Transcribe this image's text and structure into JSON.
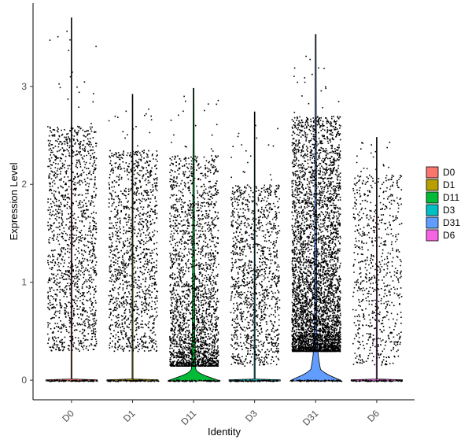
{
  "chart_data": {
    "type": "violin",
    "xlabel": "Identity",
    "ylabel": "Expression Level",
    "ylim": [
      -0.2,
      3.85
    ],
    "yticks": [
      0,
      1,
      2,
      3
    ],
    "categories": [
      "D0",
      "D1",
      "D11",
      "D3",
      "D31",
      "D6"
    ],
    "series": [
      {
        "name": "D0",
        "color": "#F8766D",
        "max": 3.7,
        "jitter_range": [
          0.3,
          2.6
        ],
        "point_count": 1400,
        "violin_peak_width": 0.0
      },
      {
        "name": "D1",
        "color": "#B79F00",
        "max": 2.92,
        "jitter_range": [
          0.3,
          2.35
        ],
        "point_count": 1300,
        "violin_peak_width": 0.0
      },
      {
        "name": "D11",
        "color": "#00BA38",
        "max": 2.98,
        "jitter_range": [
          0.15,
          2.3
        ],
        "point_count": 2300,
        "violin_peak_width": 0.35
      },
      {
        "name": "D3",
        "color": "#00BFC4",
        "max": 2.74,
        "jitter_range": [
          0.15,
          2.0
        ],
        "point_count": 1200,
        "violin_peak_width": 0.0
      },
      {
        "name": "D31",
        "color": "#619CFF",
        "max": 3.53,
        "jitter_range": [
          0.3,
          2.7
        ],
        "point_count": 4200,
        "violin_peak_width": 0.75
      },
      {
        "name": "D6",
        "color": "#F564E3",
        "max": 2.48,
        "jitter_range": [
          0.15,
          2.1
        ],
        "point_count": 700,
        "violin_peak_width": 0.0
      }
    ],
    "grid": false,
    "legend_position": "right"
  }
}
